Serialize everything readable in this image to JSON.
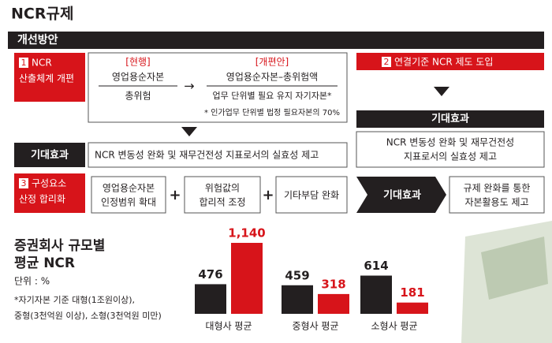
{
  "header": {
    "title": "NCR규제",
    "section": "개선방안"
  },
  "plan1": {
    "number": "1",
    "label": [
      "NCR",
      "산출체계 개편"
    ],
    "current": {
      "tag": "[현행]",
      "numerator": "영업용순자본",
      "denominator": "총위험"
    },
    "revised": {
      "tag": "[개편안]",
      "numerator": "영업용순자본–총위험액",
      "denominator": "업무 단위별 필요 유지 자기자본*"
    },
    "note": "* 인가업무 단위별 법정 필요자본의 70%",
    "effect_label": "기대효과",
    "effect": "NCR 변동성 완화 및 재무건전성 지표로서의 실효성 제고"
  },
  "plan2": {
    "number": "2",
    "label": "연결기준 NCR 제도 도입",
    "effect_label": "기대효과",
    "effect": [
      "NCR 변동성 완화 및 재무건전성",
      "지표로서의 실효성 제고"
    ]
  },
  "plan3": {
    "number": "3",
    "label": [
      "구성요소",
      "산정 합리화"
    ],
    "steps": [
      [
        "영업용순자본",
        "인정범위 확대"
      ],
      [
        "위험값의",
        "합리적 조정"
      ],
      [
        "기타부담 완화"
      ]
    ],
    "effect_label": "기대효과",
    "effect": [
      "규제 완화를 통한",
      "자본활용도 제고"
    ]
  },
  "chart_data": {
    "type": "bar",
    "title": [
      "증권회사 규모별",
      "평균 NCR"
    ],
    "unit": "단위 : %",
    "notes": [
      "*자기자본 기준 대형(1조원이상),",
      "중형(3천억원 이상), 소형(3천억원 미만)"
    ],
    "categories": [
      "대형사 평균",
      "중형사 평균",
      "소형사 평균"
    ],
    "series": [
      {
        "color": "#231f20",
        "values": [
          476,
          459,
          614
        ]
      },
      {
        "color": "#d7141a",
        "values": [
          1140,
          318,
          181
        ],
        "value_labels": [
          "1,140",
          "318",
          "181"
        ]
      }
    ]
  }
}
